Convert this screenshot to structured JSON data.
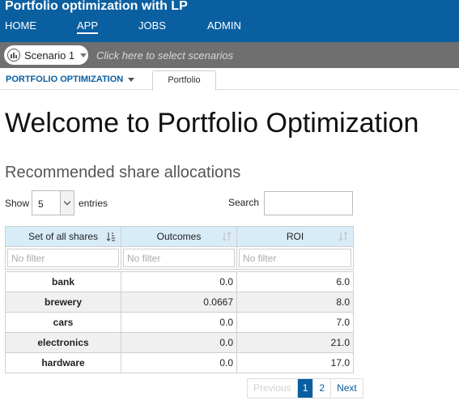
{
  "header": {
    "title": "Portfolio optimization with LP",
    "nav": [
      {
        "label": "HOME",
        "active": false
      },
      {
        "label": "APP",
        "active": true
      },
      {
        "label": "JOBS",
        "active": false
      },
      {
        "label": "ADMIN",
        "active": false
      }
    ]
  },
  "scenario": {
    "selected": "Scenario 1",
    "hint": "Click here to select scenarios"
  },
  "subnav": {
    "section": "PORTFOLIO OPTIMIZATION",
    "tab": "Portfolio"
  },
  "page": {
    "title": "Welcome to Portfolio Optimization",
    "subtitle": "Recommended share allocations"
  },
  "table_controls": {
    "show_label": "Show",
    "page_size": "5",
    "entries_label": "entries",
    "search_label": "Search",
    "search_value": ""
  },
  "table": {
    "columns": [
      "Set of all shares",
      "Outcomes",
      "ROI"
    ],
    "filter_placeholder": "No filter",
    "rows": [
      {
        "share": "bank",
        "outcome": "0.0",
        "roi": "6.0"
      },
      {
        "share": "brewery",
        "outcome": "0.0667",
        "roi": "8.0"
      },
      {
        "share": "cars",
        "outcome": "0.0",
        "roi": "7.0"
      },
      {
        "share": "electronics",
        "outcome": "0.0",
        "roi": "21.0"
      },
      {
        "share": "hardware",
        "outcome": "0.0",
        "roi": "17.0"
      }
    ]
  },
  "pagination": {
    "previous": "Previous",
    "pages": [
      "1",
      "2"
    ],
    "current": "1",
    "next": "Next"
  },
  "colors": {
    "brand_blue": "#0a5fa0",
    "scenario_bar": "#6f6f6f",
    "table_header": "#d8ecf8"
  }
}
